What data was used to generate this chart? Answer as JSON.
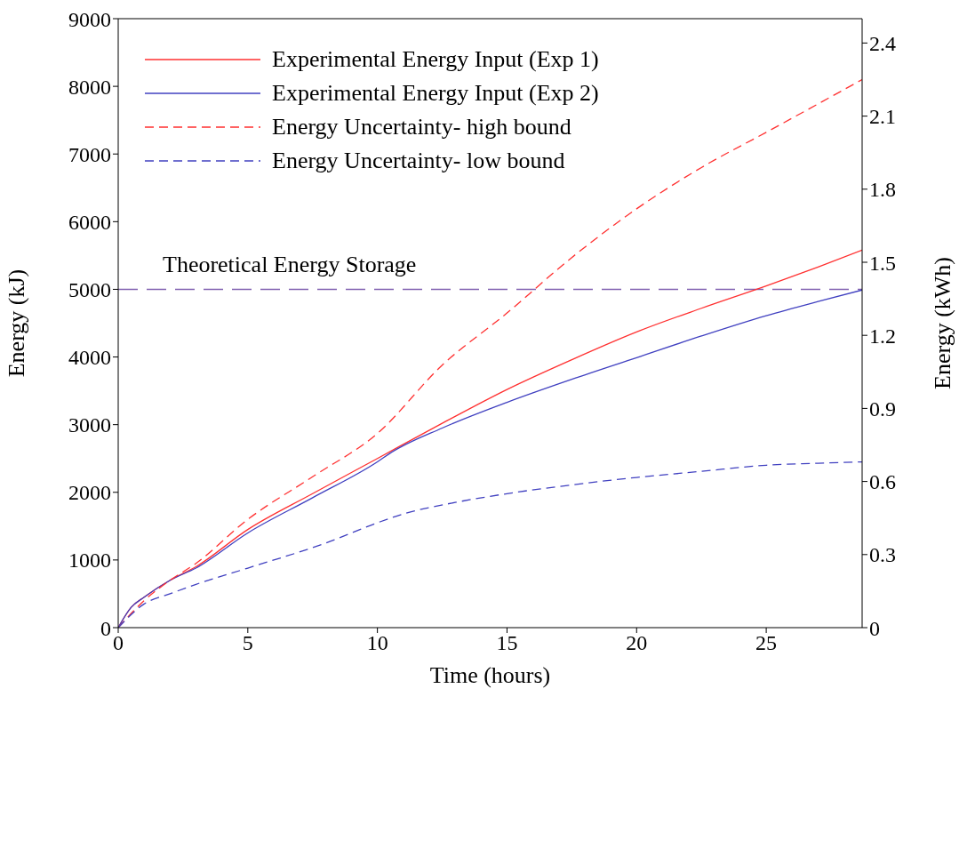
{
  "chart_data": {
    "type": "line",
    "xlabel": "Time (hours)",
    "ylabel": "Energy (kJ)",
    "y2label": "Energy (kWh)",
    "xlim": [
      0,
      28.7
    ],
    "xticks": [
      0,
      5,
      10,
      15,
      20,
      25
    ],
    "ylim": [
      0,
      9000
    ],
    "yticks": [
      0,
      1000,
      2000,
      3000,
      4000,
      5000,
      6000,
      7000,
      8000,
      9000
    ],
    "y2lim": [
      0,
      2.5
    ],
    "y2ticks": [
      0,
      0.3,
      0.6,
      0.9,
      1.2,
      1.5,
      1.8,
      2.1,
      2.4
    ],
    "grid": false,
    "legend": "top left",
    "marker": "none",
    "series": [
      {
        "name": "Experimental Energy Input (Exp 1)",
        "color": "#ff3030",
        "line_style": "solid",
        "x": [
          0,
          0.5,
          1,
          2,
          3,
          5,
          7.5,
          10,
          12.5,
          15,
          17.5,
          20,
          22.5,
          25,
          27,
          28.7
        ],
        "values": [
          0,
          300,
          450,
          700,
          900,
          1450,
          1980,
          2500,
          3020,
          3520,
          3960,
          4370,
          4720,
          5050,
          5330,
          5580
        ]
      },
      {
        "name": "Experimental Energy Input (Exp 2)",
        "color": "#4040c0",
        "line_style": "solid",
        "x": [
          0,
          0.5,
          1,
          2,
          3,
          5,
          7.5,
          10,
          10.5,
          12.5,
          15,
          17.5,
          20,
          22.5,
          25,
          27,
          28.7
        ],
        "values": [
          0,
          300,
          450,
          700,
          880,
          1400,
          1920,
          2450,
          2580,
          2950,
          3330,
          3670,
          3990,
          4310,
          4610,
          4820,
          4990
        ]
      },
      {
        "name": "Energy Uncertainty- high bound",
        "color": "#ff3030",
        "line_style": "dashed",
        "x": [
          0,
          1,
          2,
          3,
          5,
          7.5,
          10,
          12.5,
          15,
          17.5,
          20,
          22.5,
          25,
          27,
          28.7
        ],
        "values": [
          0,
          400,
          700,
          950,
          1600,
          2230,
          2870,
          3880,
          4650,
          5470,
          6190,
          6800,
          7320,
          7740,
          8100
        ]
      },
      {
        "name": "Energy Uncertainty- low bound",
        "color": "#4040c0",
        "line_style": "dashed",
        "x": [
          0,
          1,
          2,
          3,
          5,
          8,
          10,
          11,
          13,
          15,
          17.5,
          20,
          22.5,
          25,
          27,
          28.7
        ],
        "values": [
          0,
          350,
          500,
          640,
          880,
          1250,
          1550,
          1680,
          1850,
          1980,
          2110,
          2220,
          2310,
          2400,
          2430,
          2450
        ]
      }
    ],
    "ref_lines": [
      {
        "axis": "y",
        "value": 5000,
        "label": "Theoretical Energy Storage",
        "color": "#8060b0",
        "line_style": "dashed"
      }
    ]
  }
}
